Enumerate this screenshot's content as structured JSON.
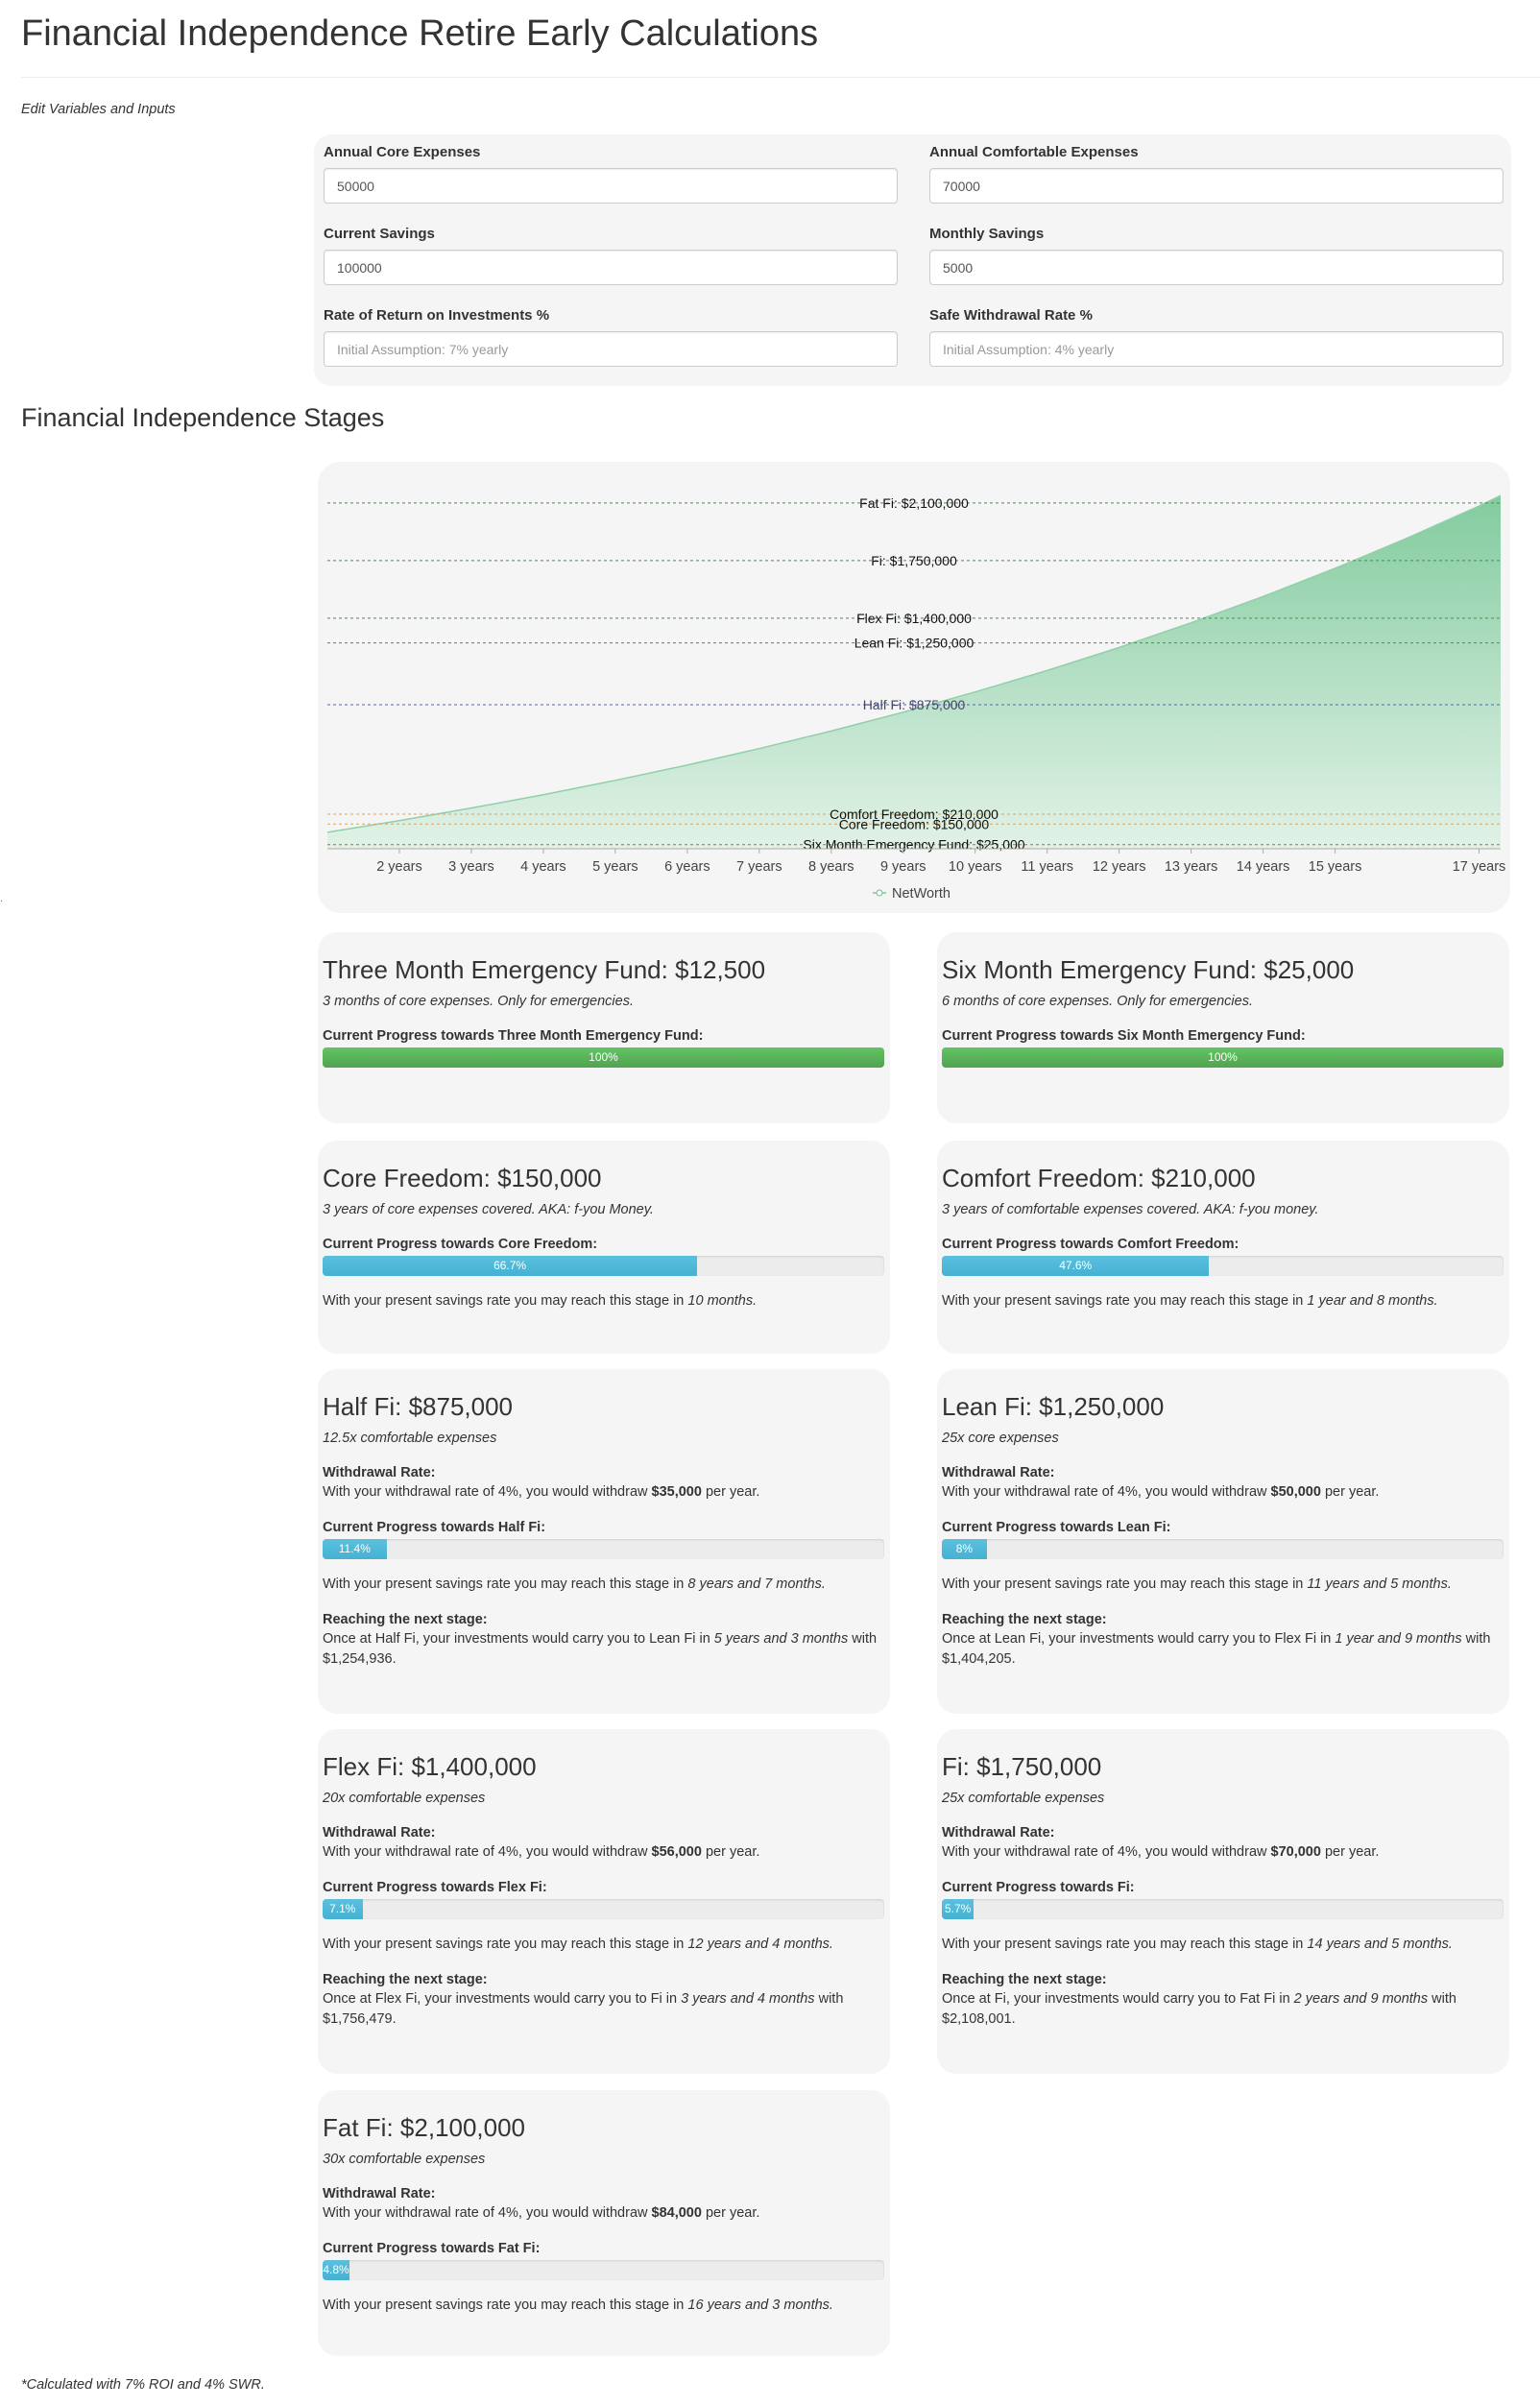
{
  "page": {
    "title": "Financial Independence Retire Early Calculations"
  },
  "inputs": {
    "section_label": "Edit Variables and Inputs",
    "fields": [
      {
        "label": "Annual Core Expenses",
        "value": "50000",
        "placeholder": ""
      },
      {
        "label": "Annual Comfortable Expenses",
        "value": "70000",
        "placeholder": ""
      },
      {
        "label": "Current Savings",
        "value": "100000",
        "placeholder": ""
      },
      {
        "label": "Monthly Savings",
        "value": "5000",
        "placeholder": ""
      },
      {
        "label": "Rate of Return on Investments %",
        "value": "",
        "placeholder": "Initial Assumption: 7% yearly"
      },
      {
        "label": "Safe Withdrawal Rate %",
        "value": "",
        "placeholder": "Initial Assumption: 4% yearly"
      }
    ]
  },
  "stages_title": "Financial Independence Stages",
  "chart_data": {
    "type": "area",
    "series": [
      {
        "name": "NetWorth",
        "color": "#7cc99a",
        "x": [
          0,
          1,
          2,
          3,
          4,
          5,
          6,
          7,
          8,
          9,
          10,
          11,
          12,
          13,
          14,
          15,
          16,
          17
        ],
        "values": [
          100000,
          171000,
          247000,
          328000,
          415000,
          508000,
          608000,
          715000,
          829000,
          952000,
          1082000,
          1222000,
          1372000,
          1532000,
          1703000,
          1886000,
          2082000,
          2292000
        ]
      }
    ],
    "x_tick_labels": [
      "2 years",
      "3 years",
      "4 years",
      "5 years",
      "6 years",
      "7 years",
      "8 years",
      "9 years",
      "10 years",
      "11 years",
      "12 years",
      "13 years",
      "14 years",
      "15 years",
      "17 years"
    ],
    "x_tick_values": [
      1,
      2,
      3,
      4,
      5,
      6,
      7,
      8,
      9,
      10,
      11,
      12,
      13,
      14,
      16
    ],
    "xlim": [
      0,
      16.3
    ],
    "ylim": [
      0,
      2350000
    ],
    "reference_lines": [
      {
        "label": "Fat Fi: $2,100,000",
        "value": 2100000,
        "color": "#3a9a3a",
        "label_color": "#111111"
      },
      {
        "label": "Fi: $1,750,000",
        "value": 1750000,
        "color": "#3a9a3a",
        "label_color": "#111111"
      },
      {
        "label": "Flex Fi: $1,400,000",
        "value": 1400000,
        "color": "#3a9a3a",
        "label_color": "#111111"
      },
      {
        "label": "Lean Fi: $1,250,000",
        "value": 1250000,
        "color": "#3a9a3a",
        "label_color": "#111111"
      },
      {
        "label": "Half Fi: $875,000",
        "value": 875000,
        "color": "#4a5fe0",
        "label_color": "#444466"
      },
      {
        "label": "Comfort Freedom: $210,000",
        "value": 210000,
        "color": "#e8a24a",
        "label_color": "#111111"
      },
      {
        "label": "Core Freedom: $150,000",
        "value": 150000,
        "color": "#e8a24a",
        "label_color": "#111111"
      },
      {
        "label": "Six Month Emergency Fund: $25,000",
        "value": 25000,
        "color": "#d9534f",
        "label_color": "#111111"
      }
    ],
    "legend_position": "bottom",
    "grid": false
  },
  "cards": [
    {
      "title": "Three Month Emergency Fund: $12,500",
      "desc": "3 months of core expenses. Only for emergencies.",
      "progress_label": "Current Progress towards Three Month Emergency Fund:",
      "progress": 1.0,
      "progress_text": "100%",
      "bar_color": "green"
    },
    {
      "title": "Six Month Emergency Fund: $25,000",
      "desc": "6 months of core expenses. Only for emergencies.",
      "progress_label": "Current Progress towards Six Month Emergency Fund:",
      "progress": 1.0,
      "progress_text": "100%",
      "bar_color": "green"
    },
    {
      "title": "Core Freedom: $150,000",
      "desc": "3 years of core expenses covered. AKA: f-you Money.",
      "progress_label": "Current Progress towards Core Freedom:",
      "progress": 0.667,
      "progress_text": "66.7%",
      "bar_color": "blue",
      "reach_prefix": "With your present savings rate you may reach this stage in ",
      "reach_time": "10 months."
    },
    {
      "title": "Comfort Freedom: $210,000",
      "desc": "3 years of comfortable expenses covered. AKA: f-you money.",
      "progress_label": "Current Progress towards Comfort Freedom:",
      "progress": 0.476,
      "progress_text": "47.6%",
      "bar_color": "blue",
      "reach_prefix": "With your present savings rate you may reach this stage in ",
      "reach_time": "1 year and 8 months."
    },
    {
      "title": "Half Fi: $875,000",
      "desc": "12.5x comfortable expenses",
      "withdrawal_label": "Withdrawal Rate:",
      "withdrawal_prefix": "With your withdrawal rate of 4%, you would withdraw ",
      "withdrawal_amount": "$35,000",
      "withdrawal_suffix": " per year.",
      "progress_label": "Current Progress towards Half Fi:",
      "progress": 0.114,
      "progress_text": "11.4%",
      "bar_color": "blue",
      "reach_prefix": "With your present savings rate you may reach this stage in ",
      "reach_time": "8 years and 7 months.",
      "next_label": "Reaching the next stage:",
      "next_prefix": "Once at Half Fi, your investments would carry you to Lean Fi in ",
      "next_time": "5 years and 3 months",
      "next_suffix": " with $1,254,936."
    },
    {
      "title": "Lean Fi: $1,250,000",
      "desc": "25x core expenses",
      "withdrawal_label": "Withdrawal Rate:",
      "withdrawal_prefix": "With your withdrawal rate of 4%, you would withdraw ",
      "withdrawal_amount": "$50,000",
      "withdrawal_suffix": " per year.",
      "progress_label": "Current Progress towards Lean Fi:",
      "progress": 0.08,
      "progress_text": "8%",
      "bar_color": "blue",
      "reach_prefix": "With your present savings rate you may reach this stage in ",
      "reach_time": "11 years and 5 months.",
      "next_label": "Reaching the next stage:",
      "next_prefix": "Once at Lean Fi, your investments would carry you to Flex Fi in ",
      "next_time": "1 year and 9 months",
      "next_suffix": " with $1,404,205."
    },
    {
      "title": "Flex Fi: $1,400,000",
      "desc": "20x comfortable expenses",
      "withdrawal_label": "Withdrawal Rate:",
      "withdrawal_prefix": "With your withdrawal rate of 4%, you would withdraw ",
      "withdrawal_amount": "$56,000",
      "withdrawal_suffix": " per year.",
      "progress_label": "Current Progress towards Flex Fi:",
      "progress": 0.071,
      "progress_text": "7.1%",
      "bar_color": "blue",
      "reach_prefix": "With your present savings rate you may reach this stage in ",
      "reach_time": "12 years and 4 months.",
      "next_label": "Reaching the next stage:",
      "next_prefix": "Once at Flex Fi, your investments would carry you to Fi in ",
      "next_time": "3 years and 4 months",
      "next_suffix": " with $1,756,479."
    },
    {
      "title": "Fi: $1,750,000",
      "desc": "25x comfortable expenses",
      "withdrawal_label": "Withdrawal Rate:",
      "withdrawal_prefix": "With your withdrawal rate of 4%, you would withdraw ",
      "withdrawal_amount": "$70,000",
      "withdrawal_suffix": " per year.",
      "progress_label": "Current Progress towards Fi:",
      "progress": 0.057,
      "progress_text": "5.7%",
      "bar_color": "blue",
      "reach_prefix": "With your present savings rate you may reach this stage in ",
      "reach_time": "14 years and 5 months.",
      "next_label": "Reaching the next stage:",
      "next_prefix": "Once at Fi, your investments would carry you to Fat Fi in ",
      "next_time": "2 years and 9 months",
      "next_suffix": " with $2,108,001."
    },
    {
      "title": "Fat Fi: $2,100,000",
      "desc": "30x comfortable expenses",
      "withdrawal_label": "Withdrawal Rate:",
      "withdrawal_prefix": "With your withdrawal rate of 4%, you would withdraw ",
      "withdrawal_amount": "$84,000",
      "withdrawal_suffix": " per year.",
      "progress_label": "Current Progress towards Fat Fi:",
      "progress": 0.048,
      "progress_text": "4.8%",
      "bar_color": "blue",
      "reach_prefix": "With your present savings rate you may reach this stage in ",
      "reach_time": "16 years and 3 months."
    }
  ],
  "footnote": "*Calculated with 7% ROI and 4% SWR."
}
